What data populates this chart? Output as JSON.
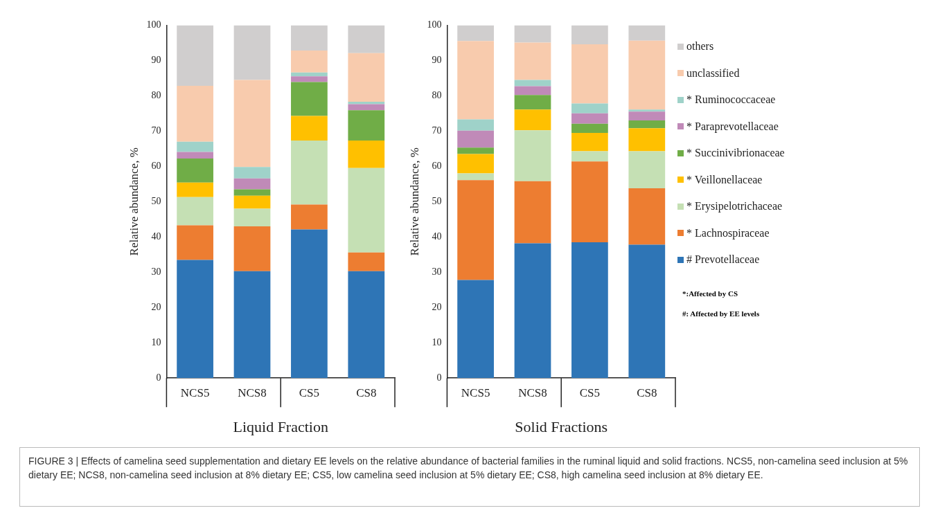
{
  "chart_data": [
    {
      "type": "bar",
      "stacked": true,
      "xlabel": "Liquid Fraction",
      "ylabel": "Relative abundance, %",
      "categories": [
        "NCS5",
        "NCS8",
        "CS5",
        "CS8"
      ],
      "ylim": [
        0,
        100
      ],
      "yticks": [
        0,
        10,
        20,
        30,
        40,
        50,
        60,
        70,
        80,
        90,
        100
      ],
      "grid": false,
      "series": [
        {
          "color": "#2e75b6",
          "values": [
            33.5,
            30.3,
            42.1,
            30.3
          ]
        },
        {
          "color": "#ed7d31",
          "values": [
            9.8,
            12.7,
            7.1,
            5.3
          ]
        },
        {
          "color": "#c5e0b4",
          "values": [
            8.0,
            5.0,
            18.1,
            23.9
          ]
        },
        {
          "color": "#ffc000",
          "values": [
            4.1,
            3.7,
            7.0,
            7.8
          ]
        },
        {
          "color": "#70ad47",
          "values": [
            6.8,
            1.8,
            9.6,
            8.6
          ]
        },
        {
          "color": "#c08ab8",
          "values": [
            1.9,
            3.1,
            1.6,
            1.7
          ]
        },
        {
          "color": "#9fd2c9",
          "values": [
            2.9,
            3.2,
            1.1,
            0.7
          ]
        },
        {
          "color": "#f8cbad",
          "values": [
            15.8,
            24.7,
            6.2,
            13.8
          ]
        },
        {
          "color": "#d0cece",
          "values": [
            17.2,
            15.5,
            7.2,
            7.9
          ]
        }
      ],
      "annotations": [
        "FIGURE 3 | Effects of camelina seed supplementation and dietary EE levels on the relative abundance of bacterial families in the ruminal liquid and solid fractions. NCS5, non-camelina seed inclusion at 5% dietary EE; NCS8, non-camelina seed inclusion at 8% dietary EE; CS5, low camelina seed inclusion at 5% dietary EE; CS8, high camelina seed inclusion at 8% dietary EE."
      ]
    },
    {
      "type": "bar",
      "stacked": true,
      "xlabel": "Solid Fractions",
      "ylabel": "Relative abundance, %",
      "categories": [
        "NCS5",
        "NCS8",
        "CS5",
        "CS8"
      ],
      "ylim": [
        0,
        100
      ],
      "yticks": [
        0,
        10,
        20,
        30,
        40,
        50,
        60,
        70,
        80,
        90,
        100
      ],
      "grid": false,
      "legend": "right",
      "series": [
        {
          "name": "# Prevotellaceae",
          "color": "#2e75b6",
          "values": [
            27.8,
            38.2,
            38.5,
            37.8
          ]
        },
        {
          "name": "* Lachnospiraceae",
          "color": "#ed7d31",
          "values": [
            28.3,
            17.6,
            22.9,
            16.0
          ]
        },
        {
          "name": "* Erysipelotrichaceae",
          "color": "#c5e0b4",
          "values": [
            1.9,
            14.4,
            2.9,
            10.5
          ]
        },
        {
          "name": "* Veillonellaceae",
          "color": "#ffc000",
          "values": [
            5.5,
            5.9,
            5.2,
            6.5
          ]
        },
        {
          "name": "* Succinivibrionaceae",
          "color": "#70ad47",
          "values": [
            1.8,
            4.1,
            2.6,
            2.2
          ]
        },
        {
          "name": "* Paraprevotellaceae",
          "color": "#c08ab8",
          "values": [
            4.8,
            2.5,
            2.9,
            2.5
          ]
        },
        {
          "name": "* Ruminococcaceae",
          "color": "#9fd2c9",
          "values": [
            3.2,
            1.8,
            2.8,
            0.6
          ]
        },
        {
          "name": "unclassified",
          "color": "#f8cbad",
          "values": [
            22.2,
            10.6,
            16.8,
            19.5
          ]
        },
        {
          "name": "others",
          "color": "#d0cece",
          "values": [
            4.5,
            4.9,
            5.4,
            4.4
          ]
        }
      ],
      "annotations": [
        "*:Affected by CS",
        "#: Affected by EE levels"
      ]
    }
  ]
}
